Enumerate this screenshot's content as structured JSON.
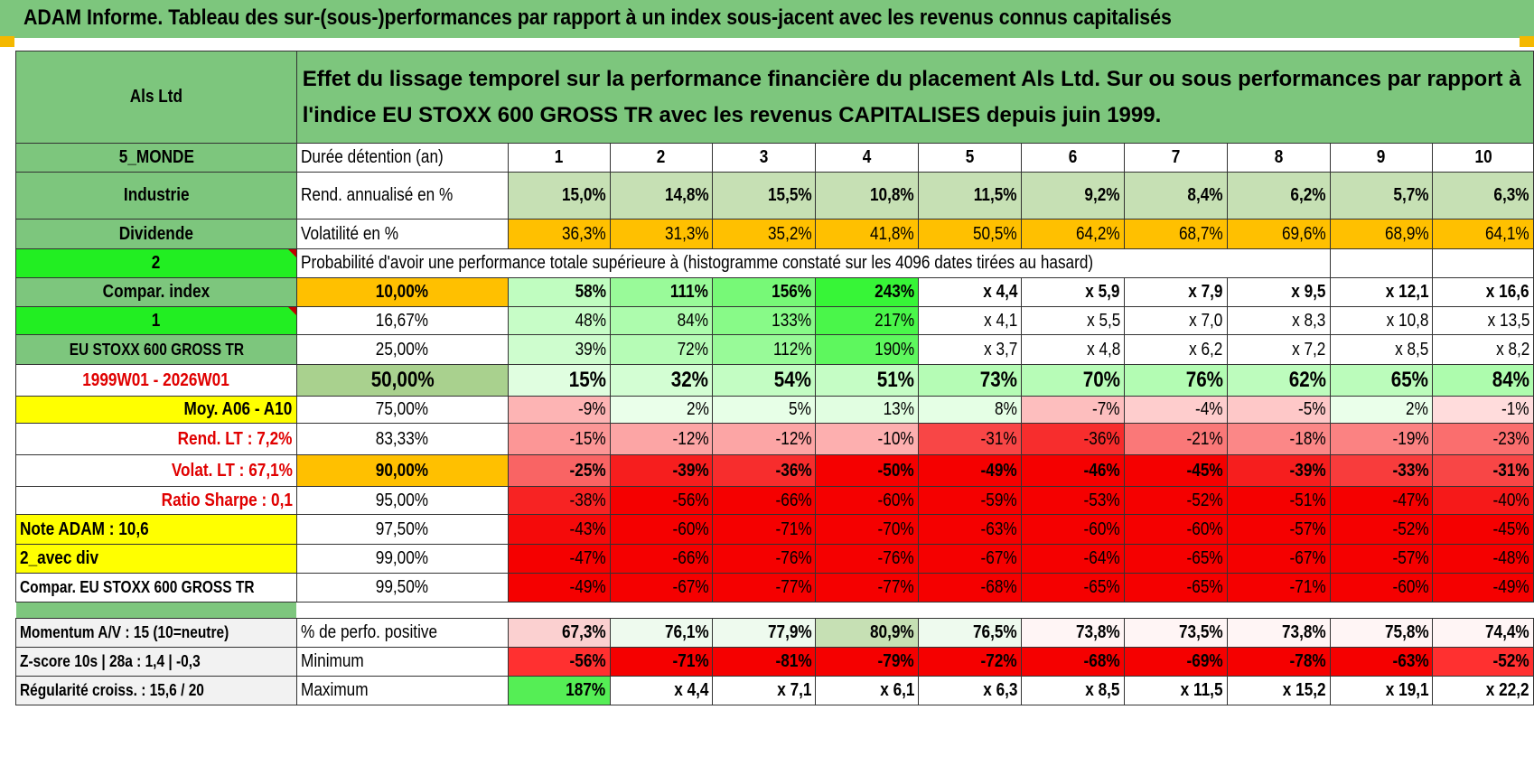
{
  "title": "ADAM Informe. Tableau des sur-(sous-)performances par rapport à un index sous-jacent avec les revenus connus capitalisés",
  "colors": {
    "header_green": "#7dc67d",
    "light_green": "#c6e0b4",
    "bright_green": "#22ee22",
    "orange": "#ffc000",
    "yellow": "#ffff00",
    "red_text": "#e00000"
  },
  "left": {
    "company": "Als Ltd",
    "region": "5_MONDE",
    "sector": "Industrie",
    "dividend": "Dividende",
    "value_2": "2",
    "compar_index": "Compar. index",
    "value_1": "1",
    "index_name": "EU STOXX 600 GROSS TR",
    "period": "1999W01 - 2026W01",
    "moy": "Moy. A06 - A10",
    "rend_lt": "Rend. LT :    7,2%",
    "volat_lt": "Volat. LT :    67,1%",
    "sharpe": "Ratio Sharpe :    0,1",
    "note": "Note ADAM : 10,6",
    "avec_div": "2_avec div",
    "compar_full": "Compar. EU STOXX 600 GROSS TR",
    "momentum": "Momentum A/V : 15 (10=neutre)",
    "zscore": "Z-score 10s | 28a : 1,4 | -0,3",
    "regularite": "Régularité croiss. : 15,6 / 20"
  },
  "header_text": "Effet du lissage temporel sur la performance financière du placement Als Ltd. Sur ou sous performances par rapport à l'indice EU STOXX 600 GROSS TR avec les revenus CAPITALISES depuis juin 1999.",
  "row_labels": {
    "duree": "Durée détention (an)",
    "rend": "Rend. annualisé en %",
    "vol": "Volatilité en %",
    "proba": "Probabilité d'avoir une performance totale supérieure à (histogramme constaté sur les 4096 dates tirées au hasard)",
    "pct_pos": "% de perfo. positive",
    "minimum": "Minimum",
    "maximum": "Maximum"
  },
  "years": [
    "1",
    "2",
    "3",
    "4",
    "5",
    "6",
    "7",
    "8",
    "9",
    "10"
  ],
  "rend": [
    "15,0%",
    "14,8%",
    "15,5%",
    "10,8%",
    "11,5%",
    "9,2%",
    "8,4%",
    "6,2%",
    "5,7%",
    "6,3%"
  ],
  "vol": [
    "36,3%",
    "31,3%",
    "35,2%",
    "41,8%",
    "50,5%",
    "64,2%",
    "68,7%",
    "69,6%",
    "68,9%",
    "64,1%"
  ],
  "percentile_rows": [
    {
      "p": "10,00%",
      "v": [
        "58%",
        "111%",
        "156%",
        "243%",
        "x 4,4",
        "x 5,9",
        "x 7,9",
        "x 9,5",
        "x 12,1",
        "x 16,6"
      ]
    },
    {
      "p": "16,67%",
      "v": [
        "48%",
        "84%",
        "133%",
        "217%",
        "x 4,1",
        "x 5,5",
        "x 7,0",
        "x 8,3",
        "x 10,8",
        "x 13,5"
      ]
    },
    {
      "p": "25,00%",
      "v": [
        "39%",
        "72%",
        "112%",
        "190%",
        "x 3,7",
        "x 4,8",
        "x 6,2",
        "x 7,2",
        "x 8,5",
        "x 8,2"
      ]
    },
    {
      "p": "50,00%",
      "v": [
        "15%",
        "32%",
        "54%",
        "51%",
        "73%",
        "70%",
        "76%",
        "62%",
        "65%",
        "84%"
      ]
    },
    {
      "p": "75,00%",
      "v": [
        "-9%",
        "2%",
        "5%",
        "13%",
        "8%",
        "-7%",
        "-4%",
        "-5%",
        "2%",
        "-1%"
      ]
    },
    {
      "p": "83,33%",
      "v": [
        "-15%",
        "-12%",
        "-12%",
        "-10%",
        "-31%",
        "-36%",
        "-21%",
        "-18%",
        "-19%",
        "-23%"
      ]
    },
    {
      "p": "90,00%",
      "v": [
        "-25%",
        "-39%",
        "-36%",
        "-50%",
        "-49%",
        "-46%",
        "-45%",
        "-39%",
        "-33%",
        "-31%"
      ]
    },
    {
      "p": "95,00%",
      "v": [
        "-38%",
        "-56%",
        "-66%",
        "-60%",
        "-59%",
        "-53%",
        "-52%",
        "-51%",
        "-47%",
        "-40%"
      ]
    },
    {
      "p": "97,50%",
      "v": [
        "-43%",
        "-60%",
        "-71%",
        "-70%",
        "-63%",
        "-60%",
        "-60%",
        "-57%",
        "-52%",
        "-45%"
      ]
    },
    {
      "p": "99,00%",
      "v": [
        "-47%",
        "-66%",
        "-76%",
        "-76%",
        "-67%",
        "-64%",
        "-65%",
        "-67%",
        "-57%",
        "-48%"
      ]
    },
    {
      "p": "99,50%",
      "v": [
        "-49%",
        "-67%",
        "-77%",
        "-77%",
        "-68%",
        "-65%",
        "-65%",
        "-71%",
        "-60%",
        "-49%"
      ]
    }
  ],
  "pct_pos": [
    "67,3%",
    "76,1%",
    "77,9%",
    "80,9%",
    "76,5%",
    "73,8%",
    "73,5%",
    "73,8%",
    "75,8%",
    "74,4%"
  ],
  "minimum": [
    "-56%",
    "-71%",
    "-81%",
    "-79%",
    "-72%",
    "-68%",
    "-69%",
    "-78%",
    "-63%",
    "-52%"
  ],
  "maximum": [
    "187%",
    "x 4,4",
    "x 7,1",
    "x 6,1",
    "x 6,3",
    "x 8,5",
    "x 11,5",
    "x 15,2",
    "x 19,1",
    "x 22,2"
  ]
}
